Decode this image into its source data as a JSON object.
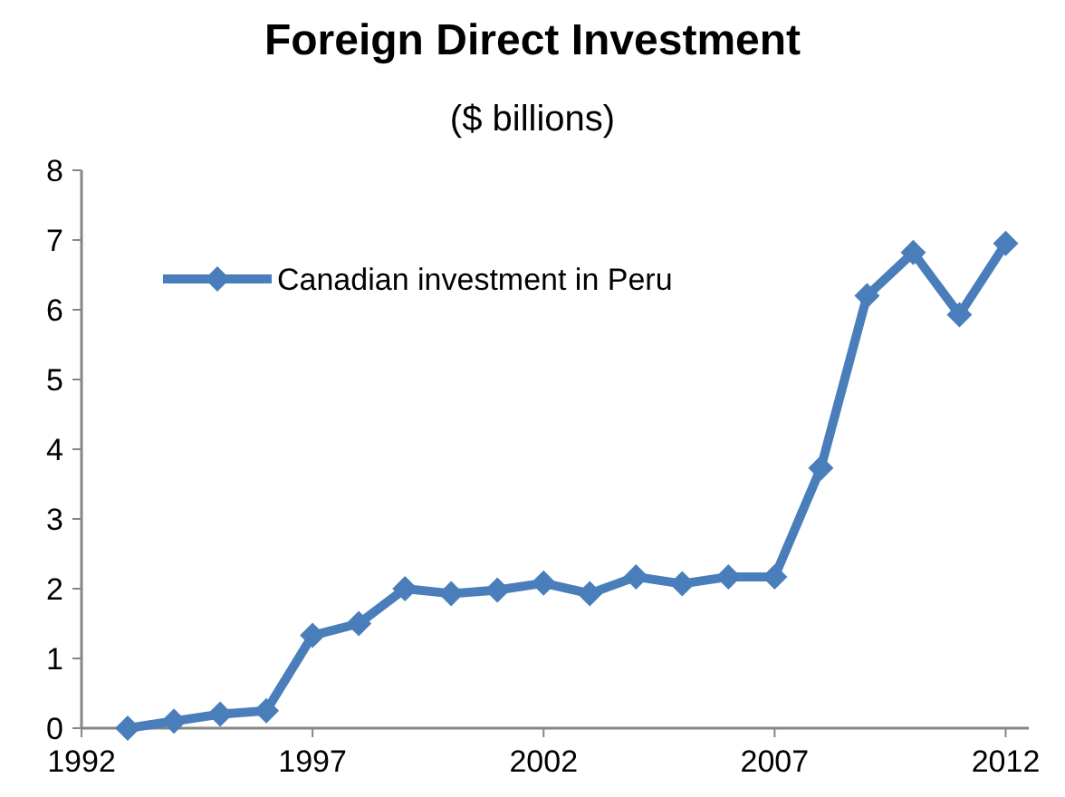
{
  "chart_data": {
    "type": "line",
    "title": "Foreign Direct Investment",
    "subtitle": "($ billions)",
    "x": [
      1993,
      1994,
      1995,
      1996,
      1997,
      1998,
      1999,
      2000,
      2001,
      2002,
      2003,
      2004,
      2005,
      2006,
      2007,
      2008,
      2009,
      2010,
      2011,
      2012
    ],
    "series": [
      {
        "name": "Canadian investment in Peru",
        "color": "#4a7ebb",
        "values": [
          0.0,
          0.1,
          0.2,
          0.25,
          1.33,
          1.5,
          2.0,
          1.93,
          1.98,
          2.08,
          1.93,
          2.17,
          2.07,
          2.17,
          2.17,
          3.73,
          6.2,
          6.82,
          5.93,
          6.95
        ]
      }
    ],
    "xlim": [
      1992,
      2012.5
    ],
    "xticks": [
      1992,
      1997,
      2002,
      2007,
      2012
    ],
    "ylim": [
      0,
      8
    ],
    "yticks": [
      0,
      1,
      2,
      3,
      4,
      5,
      6,
      7,
      8
    ],
    "legend": "top left",
    "marker": "diamond",
    "line_style": "solid",
    "grid": false
  }
}
